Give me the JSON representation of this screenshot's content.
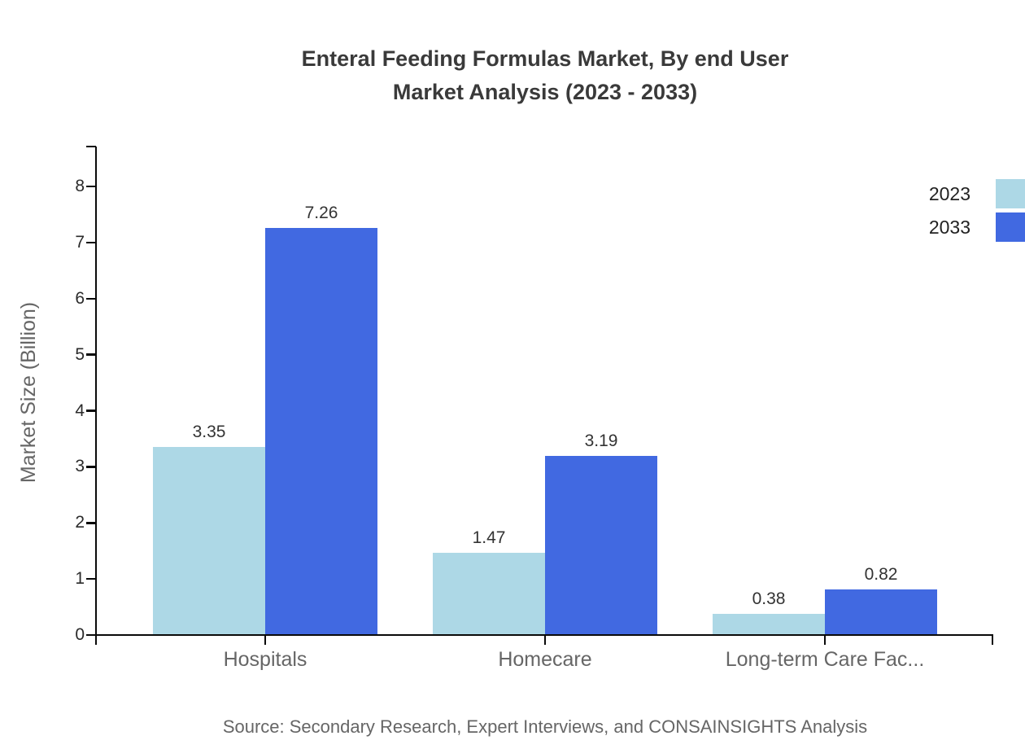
{
  "title": {
    "line1": "Enteral Feeding Formulas Market, By end User",
    "line2": "Market Analysis (2023 - 2033)"
  },
  "chart_data": {
    "type": "bar",
    "categories": [
      "Hospitals",
      "Homecare",
      "Long-term Care Fac..."
    ],
    "series": [
      {
        "name": "2023",
        "color": "#ADD8E6",
        "values": [
          3.35,
          1.47,
          0.38
        ]
      },
      {
        "name": "2033",
        "color": "#4169E1",
        "values": [
          7.26,
          3.19,
          0.82
        ]
      }
    ],
    "title": "Enteral Feeding Formulas Market, By end User Market Analysis (2023 - 2033)",
    "xlabel": "",
    "ylabel": "Market Size (Billion)",
    "ylim": [
      0,
      8
    ],
    "yticks": [
      0,
      1,
      2,
      3,
      4,
      5,
      6,
      7,
      8
    ],
    "grid": false,
    "legend_position": "top-right",
    "value_labels_shown": true
  },
  "footer": {
    "source": "Source: Secondary Research, Expert Interviews, and CONSAINSIGHTS Analysis"
  },
  "colors": {
    "series_2023": "#ADD8E6",
    "series_2033": "#4169E1",
    "axis": "#0a0a0a",
    "title_text": "#3a3a3a",
    "value_text": "#333333",
    "category_text": "#666666",
    "source_text": "#666666"
  }
}
